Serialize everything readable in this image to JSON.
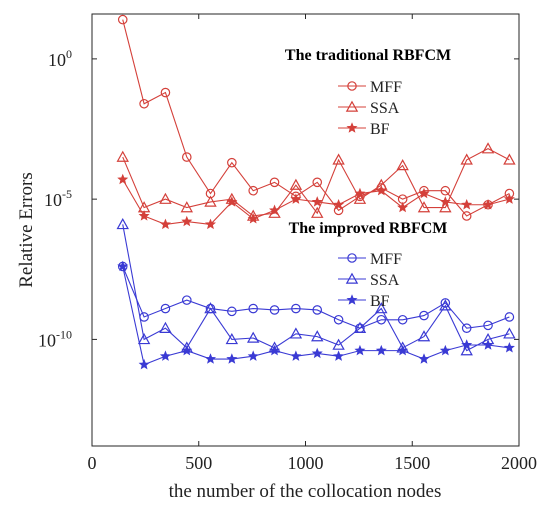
{
  "chart_data": {
    "type": "line",
    "xlabel": "the number of the collocation nodes",
    "ylabel": "Relative Errors",
    "xlim": [
      0,
      2000
    ],
    "ylim_log10": [
      -13.8,
      1.6
    ],
    "yscale": "log",
    "x_ticks": [
      {
        "value": 0,
        "label": "0"
      },
      {
        "value": 500,
        "label": "500"
      },
      {
        "value": 1000,
        "label": "1000"
      },
      {
        "value": 1500,
        "label": "1500"
      },
      {
        "value": 2000,
        "label": "2000"
      }
    ],
    "y_ticks": [
      {
        "exp": 0,
        "base": "10",
        "sup": "0"
      },
      {
        "exp": -5,
        "base": "10",
        "sup": "-5"
      },
      {
        "exp": -10,
        "base": "10",
        "sup": "-10"
      }
    ],
    "x": [
      144,
      244,
      344,
      444,
      555,
      655,
      755,
      855,
      955,
      1055,
      1155,
      1255,
      1355,
      1455,
      1555,
      1655,
      1755,
      1855,
      1955
    ],
    "groups": [
      {
        "title": "The traditional RBFCM",
        "color": "#d4403a",
        "legend_position": "top-right",
        "series": [
          {
            "name": "MFF",
            "marker": "circle",
            "log10_values": [
              1.4,
              -1.6,
              -1.2,
              -3.5,
              -4.8,
              -3.7,
              -4.7,
              -4.4,
              -4.9,
              -4.4,
              -5.4,
              -4.9,
              -4.6,
              -5.0,
              -4.7,
              -4.7,
              -5.6,
              -5.2,
              -4.8
            ]
          },
          {
            "name": "SSA",
            "marker": "triangle",
            "log10_values": [
              -3.5,
              -5.3,
              -5.0,
              -5.3,
              -5.1,
              -5.0,
              -5.6,
              -5.5,
              -4.5,
              -5.5,
              -3.6,
              -5.0,
              -4.5,
              -3.8,
              -5.3,
              -5.3,
              -3.6,
              -3.2,
              -3.6
            ]
          },
          {
            "name": "BF",
            "marker": "star",
            "log10_values": [
              -4.3,
              -5.6,
              -5.9,
              -5.8,
              -5.9,
              -5.1,
              -5.7,
              -5.4,
              -5.0,
              -5.1,
              -5.2,
              -4.8,
              -4.7,
              -5.3,
              -4.8,
              -5.1,
              -5.2,
              -5.2,
              -5.0
            ]
          }
        ]
      },
      {
        "title": "The improved RBFCM",
        "color": "#3a3ad4",
        "legend_position": "middle-right",
        "series": [
          {
            "name": "MFF",
            "marker": "circle",
            "log10_values": [
              -7.4,
              -9.2,
              -8.9,
              -8.6,
              -8.9,
              -9.0,
              -8.9,
              -8.95,
              -8.9,
              -8.95,
              -9.3,
              -9.6,
              -9.3,
              -9.3,
              -9.15,
              -8.7,
              -9.6,
              -9.5,
              -9.2
            ]
          },
          {
            "name": "SSA",
            "marker": "triangle",
            "log10_values": [
              -5.9,
              -10.0,
              -9.6,
              -10.3,
              -8.9,
              -10.0,
              -9.95,
              -10.3,
              -9.8,
              -9.9,
              -10.2,
              -9.6,
              -8.9,
              -10.3,
              -9.9,
              -8.8,
              -10.4,
              -10.0,
              -9.8
            ]
          },
          {
            "name": "BF",
            "marker": "star",
            "log10_values": [
              -7.4,
              -10.9,
              -10.6,
              -10.4,
              -10.7,
              -10.7,
              -10.6,
              -10.4,
              -10.6,
              -10.5,
              -10.6,
              -10.4,
              -10.4,
              -10.4,
              -10.7,
              -10.4,
              -10.2,
              -10.2,
              -10.3
            ]
          }
        ]
      }
    ]
  }
}
